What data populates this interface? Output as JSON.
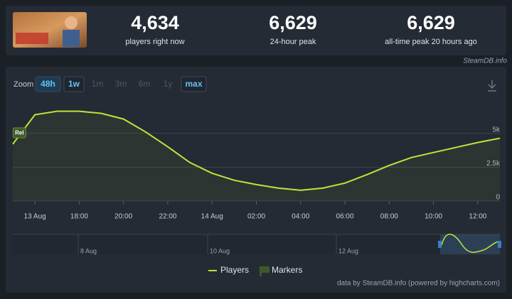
{
  "header": {
    "stats": [
      {
        "value": "4,634",
        "label": "players right now"
      },
      {
        "value": "6,629",
        "label": "24-hour peak"
      },
      {
        "value": "6,629",
        "label": "all-time peak 20 hours ago"
      }
    ],
    "source": "SteamDB.info"
  },
  "zoom": {
    "label": "Zoom",
    "buttons": [
      {
        "text": "48h",
        "active": true
      },
      {
        "text": "1w",
        "active": true
      },
      {
        "text": "1m",
        "active": false
      },
      {
        "text": "3m",
        "active": false
      },
      {
        "text": "6m",
        "active": false
      },
      {
        "text": "1y",
        "active": false
      },
      {
        "text": "max",
        "active": true
      }
    ]
  },
  "chart_data": {
    "type": "line",
    "x": [
      -1,
      0,
      1,
      2,
      3,
      4,
      5,
      6,
      7,
      8,
      9,
      10,
      11,
      12,
      13,
      14,
      15,
      16,
      17,
      18,
      19,
      20,
      21
    ],
    "xlim": [
      -1,
      21
    ],
    "xticks": [
      {
        "value": 0,
        "label": "13 Aug"
      },
      {
        "value": 2,
        "label": "18:00"
      },
      {
        "value": 4,
        "label": "20:00"
      },
      {
        "value": 6,
        "label": "22:00"
      },
      {
        "value": 8,
        "label": "14 Aug"
      },
      {
        "value": 10,
        "label": "02:00"
      },
      {
        "value": 12,
        "label": "04:00"
      },
      {
        "value": 14,
        "label": "06:00"
      },
      {
        "value": 16,
        "label": "08:00"
      },
      {
        "value": 18,
        "label": "10:00"
      },
      {
        "value": 20,
        "label": "12:00"
      }
    ],
    "ylim": [
      0,
      7500
    ],
    "yticks": [
      0,
      {
        "value": 2500,
        "label": "2.5k"
      },
      {
        "value": 5000,
        "label": "5k"
      }
    ],
    "grid": true,
    "series": [
      {
        "name": "Players",
        "color": "#c3e23a",
        "values": [
          4200,
          6370,
          6630,
          6629,
          6470,
          6050,
          5100,
          4000,
          2840,
          2050,
          1530,
          1210,
          950,
          790,
          950,
          1320,
          1950,
          2630,
          3210,
          3580,
          3950,
          4320,
          4634
        ]
      }
    ],
    "annotations": [
      {
        "text": "Rel",
        "x": -0.7
      }
    ],
    "markers_legend": "Markers",
    "navigator": {
      "labels": [
        "8 Aug",
        "10 Aug",
        "12 Aug"
      ]
    },
    "credit": "data by SteamDB.info (powered by highcharts.com)"
  }
}
